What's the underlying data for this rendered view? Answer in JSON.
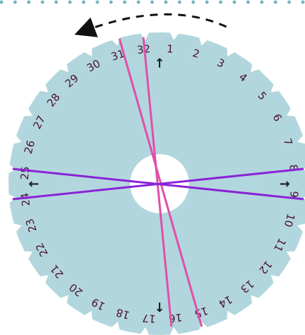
{
  "slot_labels": [
    "1",
    "2",
    "3",
    "4",
    "5",
    "6",
    "7",
    "8",
    "9",
    "10",
    "11",
    "12",
    "13",
    "14",
    "15",
    "16",
    "17",
    "18",
    "19",
    "20",
    "21",
    "22",
    "23",
    "24",
    "25",
    "26",
    "27",
    "28",
    "29",
    "30",
    "31",
    "32"
  ],
  "arrows": {
    "top": "↑",
    "bottom": "↓",
    "left": "←",
    "right": "→"
  },
  "colors": {
    "disk": "#b2d6dd",
    "center_hole": "#ffffff",
    "label_text": "#4a1030",
    "strand_pink": "#e04fa8",
    "strand_purple": "#8a22d8",
    "border_dots": "#6fb3bd",
    "rotation_arrow": "#111111"
  },
  "strands": [
    {
      "from": "31",
      "to": "15",
      "color": "pink"
    },
    {
      "from": "32",
      "to": "16",
      "color": "pink"
    },
    {
      "from": "25",
      "to": "8",
      "color": "purple"
    },
    {
      "from": "24",
      "to": "9",
      "color": "purple"
    }
  ]
}
